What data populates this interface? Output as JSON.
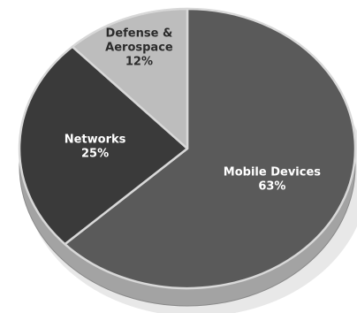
{
  "chart_data": {
    "type": "pie",
    "title": "",
    "style": "3d-tilted",
    "categories": [
      "Mobile Devices",
      "Networks",
      "Defense & Aerospace"
    ],
    "values": [
      63,
      25,
      12
    ],
    "labels": [
      {
        "lines": [
          "Mobile Devices",
          "63%"
        ],
        "color": "#ffffff"
      },
      {
        "lines": [
          "Networks",
          "25%"
        ],
        "color": "#ffffff"
      },
      {
        "lines": [
          "Defense &",
          "Aerospace",
          "12%"
        ],
        "color": "#2b2b2b"
      }
    ],
    "colors": [
      "#5a5a5a",
      "#3a3a3a",
      "#bdbdbd"
    ],
    "edge_color": "#a3a3a3"
  }
}
